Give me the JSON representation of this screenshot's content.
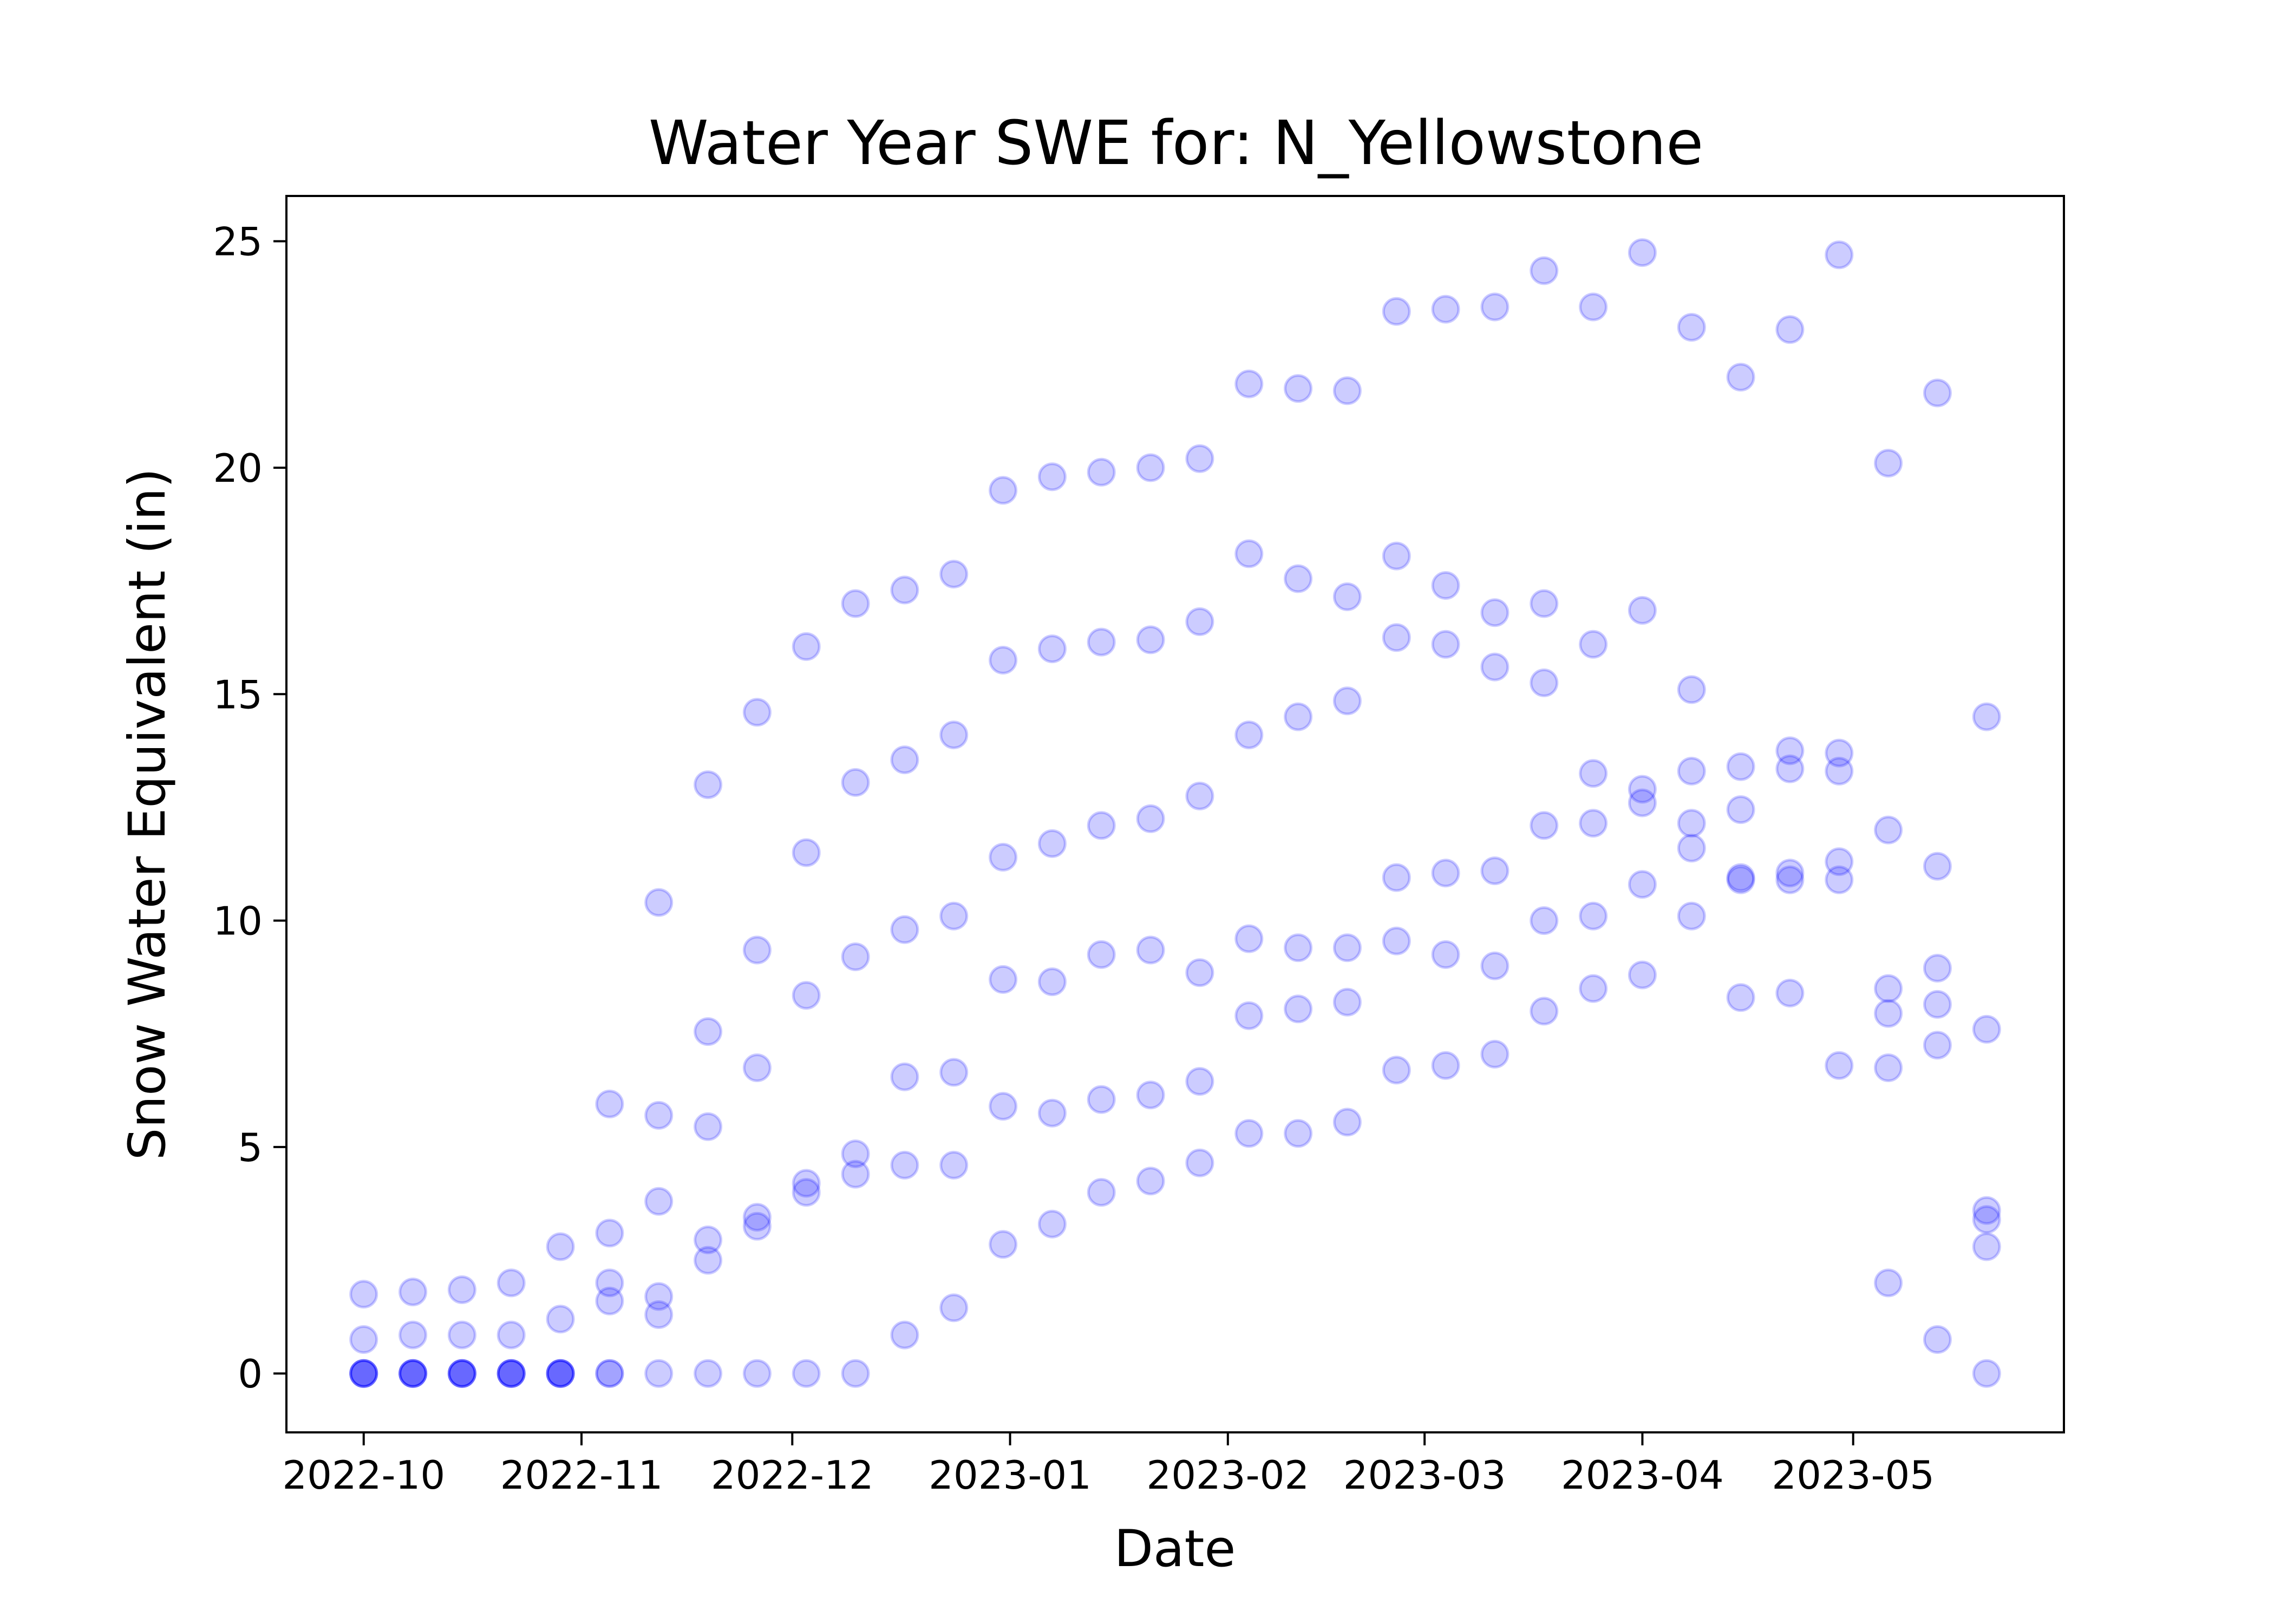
{
  "chart_data": {
    "type": "scatter",
    "title": "Water Year SWE for: N_Yellowstone",
    "xlabel": "Date",
    "ylabel": "Snow Water Equivalent (in)",
    "x_axis_type": "date",
    "xlim": [
      "2022-09-20",
      "2023-05-31"
    ],
    "ylim": [
      -1.3,
      26.0
    ],
    "x_ticks": [
      "2022-10-01",
      "2022-11-01",
      "2022-12-01",
      "2023-01-01",
      "2023-02-01",
      "2023-03-01",
      "2023-04-01",
      "2023-05-01"
    ],
    "x_tick_labels": [
      "2022-10",
      "2022-11",
      "2022-12",
      "2023-01",
      "2023-02",
      "2023-03",
      "2023-04",
      "2023-05"
    ],
    "y_ticks": [
      0,
      5,
      10,
      15,
      20,
      25
    ],
    "y_tick_labels": [
      "0",
      "5",
      "10",
      "15",
      "20",
      "25"
    ],
    "grid": false,
    "marker_color": "#0000ff",
    "marker_alpha": 0.2,
    "points": [
      {
        "x": "2022-10-01",
        "y": 1.75
      },
      {
        "x": "2022-10-01",
        "y": 0.75
      },
      {
        "x": "2022-10-01",
        "y": 0
      },
      {
        "x": "2022-10-01",
        "y": 0
      },
      {
        "x": "2022-10-01",
        "y": 0
      },
      {
        "x": "2022-10-01",
        "y": 0
      },
      {
        "x": "2022-10-08",
        "y": 1.8
      },
      {
        "x": "2022-10-08",
        "y": 0.85
      },
      {
        "x": "2022-10-08",
        "y": 0
      },
      {
        "x": "2022-10-08",
        "y": 0
      },
      {
        "x": "2022-10-08",
        "y": 0
      },
      {
        "x": "2022-10-08",
        "y": 0
      },
      {
        "x": "2022-10-15",
        "y": 1.85
      },
      {
        "x": "2022-10-15",
        "y": 0.85
      },
      {
        "x": "2022-10-15",
        "y": 0
      },
      {
        "x": "2022-10-15",
        "y": 0
      },
      {
        "x": "2022-10-15",
        "y": 0
      },
      {
        "x": "2022-10-15",
        "y": 0
      },
      {
        "x": "2022-10-22",
        "y": 2.0
      },
      {
        "x": "2022-10-22",
        "y": 0.85
      },
      {
        "x": "2022-10-22",
        "y": 0
      },
      {
        "x": "2022-10-22",
        "y": 0
      },
      {
        "x": "2022-10-22",
        "y": 0
      },
      {
        "x": "2022-10-22",
        "y": 0
      },
      {
        "x": "2022-10-29",
        "y": 2.8
      },
      {
        "x": "2022-10-29",
        "y": 1.2
      },
      {
        "x": "2022-10-29",
        "y": 0
      },
      {
        "x": "2022-10-29",
        "y": 0
      },
      {
        "x": "2022-10-29",
        "y": 0
      },
      {
        "x": "2022-10-29",
        "y": 0
      },
      {
        "x": "2022-11-05",
        "y": 5.95
      },
      {
        "x": "2022-11-05",
        "y": 3.1
      },
      {
        "x": "2022-11-05",
        "y": 2.0
      },
      {
        "x": "2022-11-05",
        "y": 1.6
      },
      {
        "x": "2022-11-05",
        "y": 0
      },
      {
        "x": "2022-11-05",
        "y": 0
      },
      {
        "x": "2022-11-12",
        "y": 10.4
      },
      {
        "x": "2022-11-12",
        "y": 5.7
      },
      {
        "x": "2022-11-12",
        "y": 3.8
      },
      {
        "x": "2022-11-12",
        "y": 1.7
      },
      {
        "x": "2022-11-12",
        "y": 1.3
      },
      {
        "x": "2022-11-12",
        "y": 0
      },
      {
        "x": "2022-11-19",
        "y": 13.0
      },
      {
        "x": "2022-11-19",
        "y": 7.55
      },
      {
        "x": "2022-11-19",
        "y": 5.45
      },
      {
        "x": "2022-11-19",
        "y": 2.95
      },
      {
        "x": "2022-11-19",
        "y": 2.5
      },
      {
        "x": "2022-11-19",
        "y": 0
      },
      {
        "x": "2022-11-26",
        "y": 14.6
      },
      {
        "x": "2022-11-26",
        "y": 9.35
      },
      {
        "x": "2022-11-26",
        "y": 6.75
      },
      {
        "x": "2022-11-26",
        "y": 3.45
      },
      {
        "x": "2022-11-26",
        "y": 3.25
      },
      {
        "x": "2022-11-26",
        "y": 0
      },
      {
        "x": "2022-12-03",
        "y": 16.05
      },
      {
        "x": "2022-12-03",
        "y": 11.5
      },
      {
        "x": "2022-12-03",
        "y": 8.35
      },
      {
        "x": "2022-12-03",
        "y": 4.2
      },
      {
        "x": "2022-12-03",
        "y": 4.0
      },
      {
        "x": "2022-12-03",
        "y": 0
      },
      {
        "x": "2022-12-10",
        "y": 17.0
      },
      {
        "x": "2022-12-10",
        "y": 13.05
      },
      {
        "x": "2022-12-10",
        "y": 9.2
      },
      {
        "x": "2022-12-10",
        "y": 4.85
      },
      {
        "x": "2022-12-10",
        "y": 4.4
      },
      {
        "x": "2022-12-10",
        "y": 0
      },
      {
        "x": "2022-12-17",
        "y": 17.3
      },
      {
        "x": "2022-12-17",
        "y": 13.55
      },
      {
        "x": "2022-12-17",
        "y": 9.8
      },
      {
        "x": "2022-12-17",
        "y": 6.55
      },
      {
        "x": "2022-12-17",
        "y": 4.6
      },
      {
        "x": "2022-12-17",
        "y": 0.85
      },
      {
        "x": "2022-12-24",
        "y": 17.65
      },
      {
        "x": "2022-12-24",
        "y": 14.1
      },
      {
        "x": "2022-12-24",
        "y": 10.1
      },
      {
        "x": "2022-12-24",
        "y": 6.65
      },
      {
        "x": "2022-12-24",
        "y": 4.6
      },
      {
        "x": "2022-12-24",
        "y": 1.45
      },
      {
        "x": "2022-12-31",
        "y": 19.5
      },
      {
        "x": "2022-12-31",
        "y": 15.75
      },
      {
        "x": "2022-12-31",
        "y": 11.4
      },
      {
        "x": "2022-12-31",
        "y": 8.7
      },
      {
        "x": "2022-12-31",
        "y": 5.9
      },
      {
        "x": "2022-12-31",
        "y": 2.85
      },
      {
        "x": "2023-01-07",
        "y": 19.8
      },
      {
        "x": "2023-01-07",
        "y": 16.0
      },
      {
        "x": "2023-01-07",
        "y": 11.7
      },
      {
        "x": "2023-01-07",
        "y": 8.65
      },
      {
        "x": "2023-01-07",
        "y": 5.75
      },
      {
        "x": "2023-01-07",
        "y": 3.3
      },
      {
        "x": "2023-01-14",
        "y": 19.9
      },
      {
        "x": "2023-01-14",
        "y": 16.15
      },
      {
        "x": "2023-01-14",
        "y": 12.1
      },
      {
        "x": "2023-01-14",
        "y": 9.25
      },
      {
        "x": "2023-01-14",
        "y": 6.05
      },
      {
        "x": "2023-01-14",
        "y": 4.0
      },
      {
        "x": "2023-01-21",
        "y": 20.0
      },
      {
        "x": "2023-01-21",
        "y": 16.2
      },
      {
        "x": "2023-01-21",
        "y": 12.25
      },
      {
        "x": "2023-01-21",
        "y": 9.35
      },
      {
        "x": "2023-01-21",
        "y": 6.15
      },
      {
        "x": "2023-01-21",
        "y": 4.25
      },
      {
        "x": "2023-01-28",
        "y": 20.2
      },
      {
        "x": "2023-01-28",
        "y": 16.6
      },
      {
        "x": "2023-01-28",
        "y": 12.75
      },
      {
        "x": "2023-01-28",
        "y": 8.85
      },
      {
        "x": "2023-01-28",
        "y": 6.45
      },
      {
        "x": "2023-01-28",
        "y": 4.65
      },
      {
        "x": "2023-02-04",
        "y": 21.85
      },
      {
        "x": "2023-02-04",
        "y": 18.1
      },
      {
        "x": "2023-02-04",
        "y": 14.1
      },
      {
        "x": "2023-02-04",
        "y": 9.6
      },
      {
        "x": "2023-02-04",
        "y": 7.9
      },
      {
        "x": "2023-02-04",
        "y": 5.3
      },
      {
        "x": "2023-02-11",
        "y": 21.75
      },
      {
        "x": "2023-02-11",
        "y": 17.55
      },
      {
        "x": "2023-02-11",
        "y": 14.5
      },
      {
        "x": "2023-02-11",
        "y": 9.4
      },
      {
        "x": "2023-02-11",
        "y": 8.05
      },
      {
        "x": "2023-02-11",
        "y": 5.3
      },
      {
        "x": "2023-02-18",
        "y": 21.7
      },
      {
        "x": "2023-02-18",
        "y": 17.15
      },
      {
        "x": "2023-02-18",
        "y": 14.85
      },
      {
        "x": "2023-02-18",
        "y": 9.4
      },
      {
        "x": "2023-02-18",
        "y": 8.2
      },
      {
        "x": "2023-02-18",
        "y": 5.55
      },
      {
        "x": "2023-02-25",
        "y": 23.45
      },
      {
        "x": "2023-02-25",
        "y": 18.05
      },
      {
        "x": "2023-02-25",
        "y": 16.25
      },
      {
        "x": "2023-02-25",
        "y": 10.95
      },
      {
        "x": "2023-02-25",
        "y": 9.55
      },
      {
        "x": "2023-02-25",
        "y": 6.7
      },
      {
        "x": "2023-03-04",
        "y": 23.5
      },
      {
        "x": "2023-03-04",
        "y": 17.4
      },
      {
        "x": "2023-03-04",
        "y": 16.1
      },
      {
        "x": "2023-03-04",
        "y": 11.05
      },
      {
        "x": "2023-03-04",
        "y": 9.25
      },
      {
        "x": "2023-03-04",
        "y": 6.8
      },
      {
        "x": "2023-03-11",
        "y": 23.55
      },
      {
        "x": "2023-03-11",
        "y": 16.8
      },
      {
        "x": "2023-03-11",
        "y": 15.6
      },
      {
        "x": "2023-03-11",
        "y": 11.1
      },
      {
        "x": "2023-03-11",
        "y": 9.0
      },
      {
        "x": "2023-03-11",
        "y": 7.05
      },
      {
        "x": "2023-03-18",
        "y": 24.35
      },
      {
        "x": "2023-03-18",
        "y": 17.0
      },
      {
        "x": "2023-03-18",
        "y": 15.25
      },
      {
        "x": "2023-03-18",
        "y": 12.1
      },
      {
        "x": "2023-03-18",
        "y": 10.0
      },
      {
        "x": "2023-03-18",
        "y": 8.0
      },
      {
        "x": "2023-03-25",
        "y": 23.55
      },
      {
        "x": "2023-03-25",
        "y": 16.1
      },
      {
        "x": "2023-03-25",
        "y": 13.25
      },
      {
        "x": "2023-03-25",
        "y": 12.15
      },
      {
        "x": "2023-03-25",
        "y": 10.1
      },
      {
        "x": "2023-03-25",
        "y": 8.5
      },
      {
        "x": "2023-04-01",
        "y": 24.75
      },
      {
        "x": "2023-04-01",
        "y": 16.85
      },
      {
        "x": "2023-04-01",
        "y": 12.9
      },
      {
        "x": "2023-04-01",
        "y": 12.6
      },
      {
        "x": "2023-04-01",
        "y": 10.8
      },
      {
        "x": "2023-04-01",
        "y": 8.8
      },
      {
        "x": "2023-04-08",
        "y": 23.1
      },
      {
        "x": "2023-04-08",
        "y": 15.1
      },
      {
        "x": "2023-04-08",
        "y": 13.3
      },
      {
        "x": "2023-04-08",
        "y": 12.15
      },
      {
        "x": "2023-04-08",
        "y": 11.6
      },
      {
        "x": "2023-04-08",
        "y": 10.1
      },
      {
        "x": "2023-04-15",
        "y": 22.0
      },
      {
        "x": "2023-04-15",
        "y": 13.4
      },
      {
        "x": "2023-04-15",
        "y": 12.45
      },
      {
        "x": "2023-04-15",
        "y": 10.95
      },
      {
        "x": "2023-04-15",
        "y": 10.9
      },
      {
        "x": "2023-04-15",
        "y": 8.3
      },
      {
        "x": "2023-04-22",
        "y": 23.05
      },
      {
        "x": "2023-04-22",
        "y": 13.75
      },
      {
        "x": "2023-04-22",
        "y": 13.35
      },
      {
        "x": "2023-04-22",
        "y": 11.05
      },
      {
        "x": "2023-04-22",
        "y": 10.9
      },
      {
        "x": "2023-04-22",
        "y": 8.4
      },
      {
        "x": "2023-04-29",
        "y": 24.7
      },
      {
        "x": "2023-04-29",
        "y": 13.7
      },
      {
        "x": "2023-04-29",
        "y": 13.3
      },
      {
        "x": "2023-04-29",
        "y": 11.3
      },
      {
        "x": "2023-04-29",
        "y": 10.9
      },
      {
        "x": "2023-04-29",
        "y": 6.8
      },
      {
        "x": "2023-05-06",
        "y": 20.1
      },
      {
        "x": "2023-05-06",
        "y": 12.0
      },
      {
        "x": "2023-05-06",
        "y": 8.5
      },
      {
        "x": "2023-05-06",
        "y": 7.95
      },
      {
        "x": "2023-05-06",
        "y": 6.75
      },
      {
        "x": "2023-05-06",
        "y": 2.0
      },
      {
        "x": "2023-05-13",
        "y": 21.65
      },
      {
        "x": "2023-05-13",
        "y": 11.2
      },
      {
        "x": "2023-05-13",
        "y": 8.95
      },
      {
        "x": "2023-05-13",
        "y": 8.15
      },
      {
        "x": "2023-05-13",
        "y": 7.25
      },
      {
        "x": "2023-05-13",
        "y": 0.75
      },
      {
        "x": "2023-05-20",
        "y": 14.5
      },
      {
        "x": "2023-05-20",
        "y": 7.6
      },
      {
        "x": "2023-05-20",
        "y": 3.6
      },
      {
        "x": "2023-05-20",
        "y": 3.4
      },
      {
        "x": "2023-05-20",
        "y": 2.8
      },
      {
        "x": "2023-05-20",
        "y": 0
      }
    ]
  }
}
